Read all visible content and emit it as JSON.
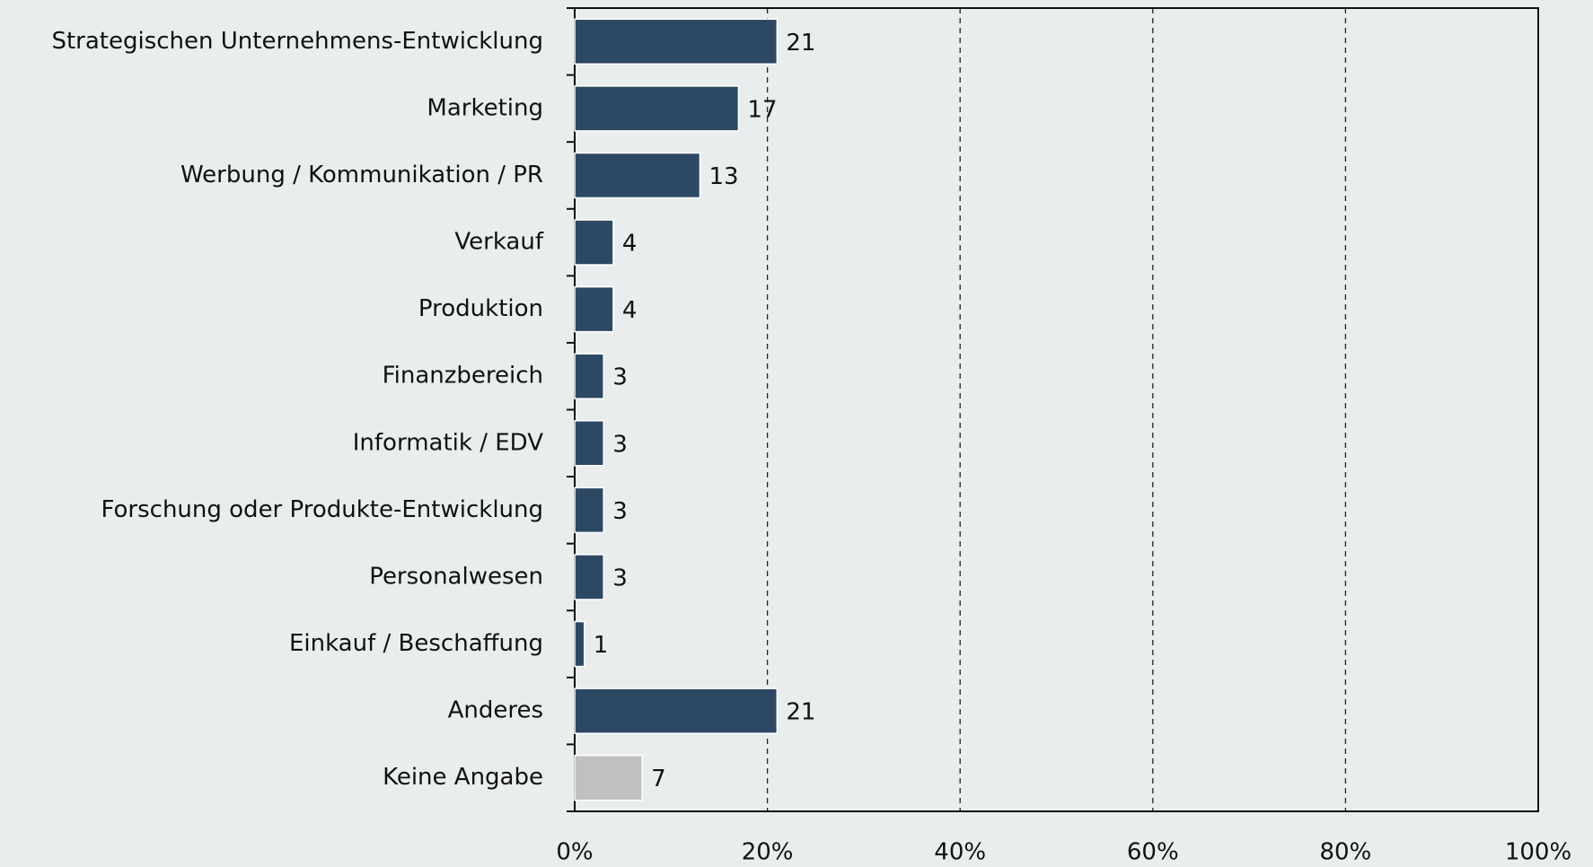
{
  "chart_data": {
    "type": "hbar",
    "categories": [
      "Strategischen Unternehmens-Entwicklung",
      "Marketing",
      "Werbung / Kommunikation / PR",
      "Verkauf",
      "Produktion",
      "Finanzbereich",
      "Informatik / EDV",
      "Forschung oder Produkte-Entwicklung",
      "Personalwesen",
      "Einkauf / Beschaffung",
      "Anderes",
      "Keine Angabe"
    ],
    "values": [
      21,
      17,
      13,
      4,
      4,
      3,
      3,
      3,
      3,
      1,
      21,
      7
    ],
    "colors": [
      "#2d4863",
      "#2d4863",
      "#2d4863",
      "#2d4863",
      "#2d4863",
      "#2d4863",
      "#2d4863",
      "#2d4863",
      "#2d4863",
      "#2d4863",
      "#2d4863",
      "#c0c0c0"
    ],
    "xlim": [
      0,
      100
    ],
    "xticks": [
      {
        "value": 0,
        "label": "0%"
      },
      {
        "value": 20,
        "label": "20%"
      },
      {
        "value": 40,
        "label": "40%"
      },
      {
        "value": 60,
        "label": "60%"
      },
      {
        "value": 80,
        "label": "80%"
      },
      {
        "value": 100,
        "label": "100%"
      }
    ],
    "grid": true
  }
}
